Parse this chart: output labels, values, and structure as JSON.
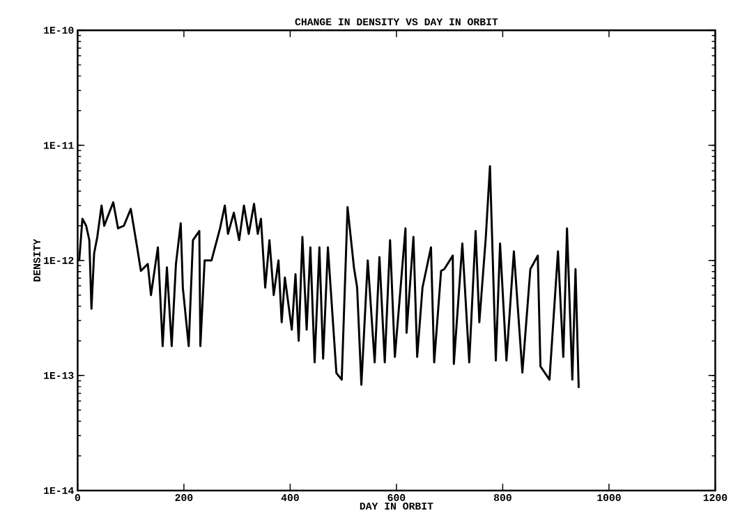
{
  "chart_data": {
    "type": "line",
    "title": "CHANGE IN DENSITY VS DAY IN ORBIT",
    "xlabel": "DAY IN ORBIT",
    "ylabel": "DENSITY",
    "log": "y",
    "color": "#000000",
    "marker": "none",
    "line_style": "solid",
    "grid": false,
    "x": [
      3,
      9,
      16,
      22,
      26,
      31,
      37,
      45,
      50,
      67,
      76,
      87,
      100,
      112,
      119,
      132,
      138,
      151,
      160,
      168,
      177,
      185,
      194,
      198,
      209,
      217,
      229,
      231,
      239,
      252,
      268,
      277,
      283,
      294,
      304,
      313,
      322,
      332,
      339,
      345,
      353,
      361,
      369,
      378,
      384,
      390,
      403,
      410,
      416,
      423,
      431,
      438,
      446,
      455,
      462,
      471,
      487,
      497,
      508,
      520,
      526,
      534,
      546,
      559,
      568,
      578,
      588,
      597,
      617,
      619,
      632,
      639,
      649,
      665,
      671,
      684,
      690,
      706,
      708,
      724,
      737,
      749,
      756,
      768,
      776,
      787,
      795,
      807,
      821,
      837,
      852,
      866,
      871,
      888,
      904,
      914,
      921,
      931,
      937,
      943
    ],
    "values": [
      1e-12,
      2.3e-12,
      2e-12,
      1.5e-12,
      3.8e-13,
      1.15e-12,
      1.6e-12,
      3e-12,
      2e-12,
      3.2e-12,
      1.9e-12,
      2e-12,
      2.8e-12,
      1.3e-12,
      8.1e-13,
      9.3e-13,
      5e-13,
      1.3e-12,
      1.8e-13,
      8.7e-13,
      1.8e-13,
      9.3e-13,
      2.1e-12,
      5.8e-13,
      1.8e-13,
      1.5e-12,
      1.8e-12,
      1.8e-13,
      1e-12,
      1e-12,
      1.9e-12,
      3e-12,
      1.7e-12,
      2.6e-12,
      1.5e-12,
      3e-12,
      1.7e-12,
      3.1e-12,
      1.7e-12,
      2.3e-12,
      5.8e-13,
      1.5e-12,
      5e-13,
      1e-12,
      2.9e-13,
      7.1e-13,
      2.5e-13,
      7.6e-13,
      2e-13,
      1.6e-12,
      2.5e-13,
      1.3e-12,
      1.3e-13,
      1.3e-12,
      1.4e-13,
      1.3e-12,
      1.05e-13,
      9.2e-14,
      2.9e-12,
      8.7e-13,
      5.8e-13,
      8.3e-14,
      1e-12,
      1.3e-13,
      1.07e-12,
      1.3e-13,
      1.5e-12,
      1.45e-13,
      1.9e-12,
      2.35e-13,
      1.6e-12,
      1.45e-13,
      5.8e-13,
      1.3e-12,
      1.3e-13,
      8.1e-13,
      8.4e-13,
      1.1e-12,
      1.26e-13,
      1.4e-12,
      1.3e-13,
      1.8e-12,
      2.9e-13,
      1.55e-12,
      6.6e-12,
      1.35e-13,
      1.4e-12,
      1.35e-13,
      1.2e-12,
      1.06e-13,
      8.4e-13,
      1.1e-12,
      1.2e-13,
      9.2e-14,
      1.2e-12,
      1.45e-13,
      1.9e-12,
      9.2e-14,
      8.4e-13,
      7.8e-14
    ],
    "xlim": [
      0,
      1200
    ],
    "xticks": [
      0,
      200,
      400,
      600,
      800,
      1000,
      1200
    ],
    "ylim": [
      1e-14,
      1e-10
    ],
    "yticks": [
      {
        "value": 1e-14,
        "label": "1E-14"
      },
      {
        "value": 1e-13,
        "label": "1E-13"
      },
      {
        "value": 1e-12,
        "label": "1E-12"
      },
      {
        "value": 1e-11,
        "label": "1E-11"
      },
      {
        "value": 1e-10,
        "label": "1E-10"
      }
    ]
  }
}
